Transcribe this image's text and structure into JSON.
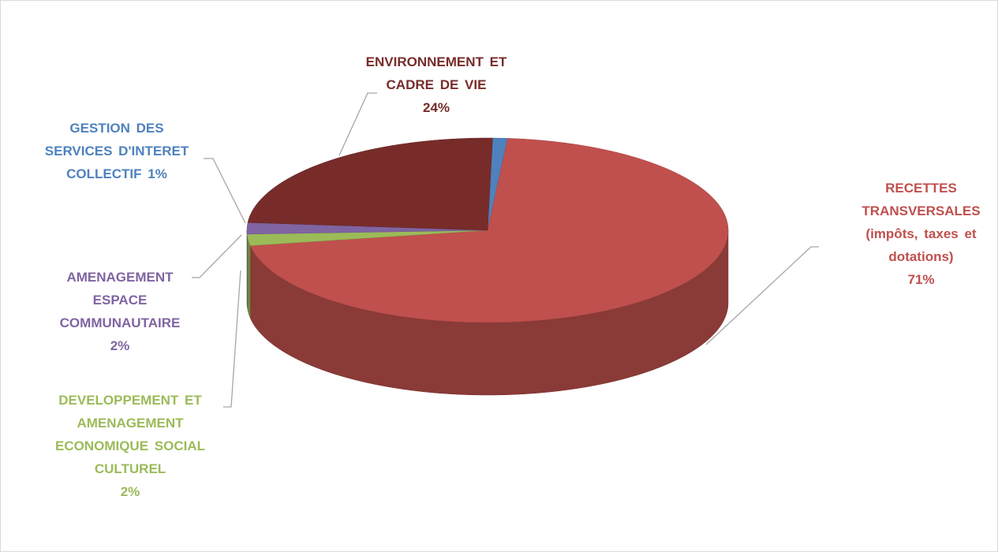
{
  "chart_data": {
    "type": "pie",
    "categories": [
      "GESTION DES SERVICES D'INTERET COLLECTIF",
      "RECETTES TRANSVERSALES (impôts, taxes et dotations)",
      "DEVELOPPEMENT ET AMENAGEMENT ECONOMIQUE SOCIAL CULTUREL",
      "AMENAGEMENT ESPACE COMMUNAUTAIRE",
      "ENVIRONNEMENT ET CADRE DE VIE"
    ],
    "values": [
      1,
      71,
      2,
      2,
      24
    ],
    "value_labels": [
      "1%",
      "71%",
      "2%",
      "2%",
      "24%"
    ],
    "colors": [
      "#4f81bd",
      "#c0504d",
      "#9bbb59",
      "#8064a2",
      "#772c2a"
    ]
  }
}
